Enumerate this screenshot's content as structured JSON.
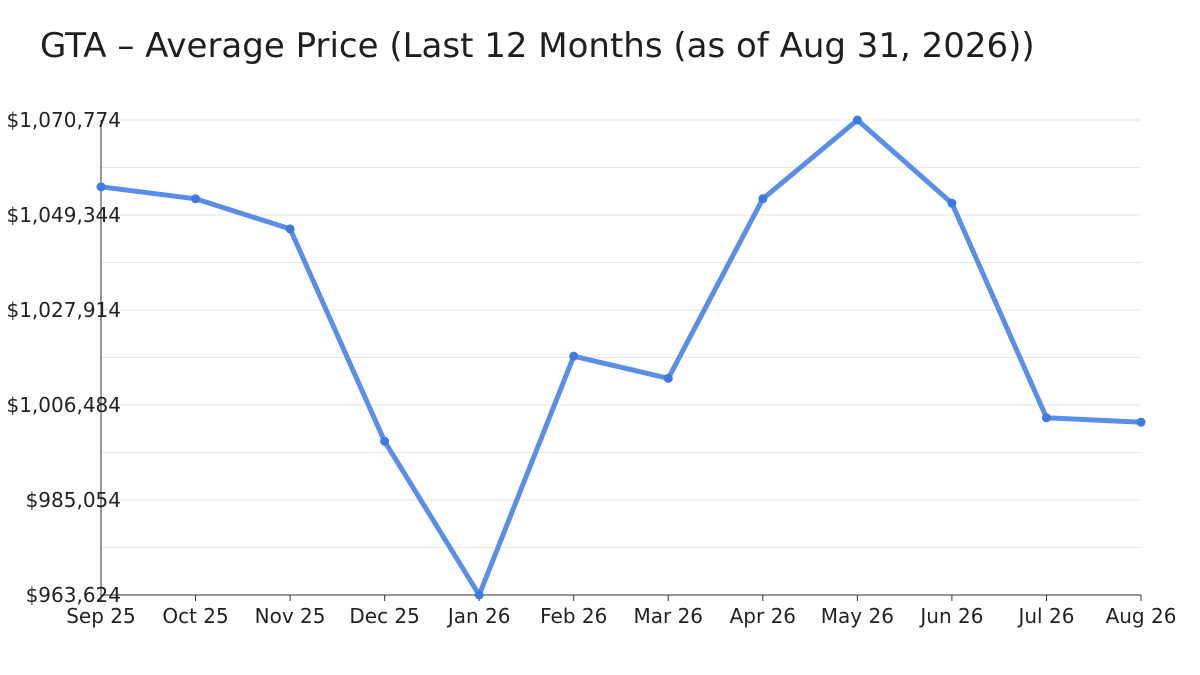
{
  "chart_data": {
    "type": "line",
    "title": "GTA – Average Price (Last 12 Months (as of Aug 31, 2026))",
    "xlabel": "",
    "ylabel": "",
    "categories": [
      "Sep 25",
      "Oct 25",
      "Nov 25",
      "Dec 25",
      "Jan 26",
      "Feb 26",
      "Mar 26",
      "Apr 26",
      "May 26",
      "Jun 26",
      "Jul 26",
      "Aug 26"
    ],
    "series": [
      {
        "values": [
          1055700,
          1053000,
          1046200,
          998300,
          963624,
          1017500,
          1012500,
          1053000,
          1070774,
          1052000,
          1003600,
          1002600
        ]
      }
    ],
    "ylim": [
      963624,
      1070774
    ],
    "yticks": [
      "$963,624",
      "$985,054",
      "$1,006,484",
      "$1,027,914",
      "$1,049,344",
      "$1,070,774"
    ],
    "grid": true,
    "legend": "none",
    "line_color": "#5b8ee6",
    "marker_color": "#3f7ae0",
    "grid_color": "#e6e6e6",
    "axis_color": "#333333"
  }
}
